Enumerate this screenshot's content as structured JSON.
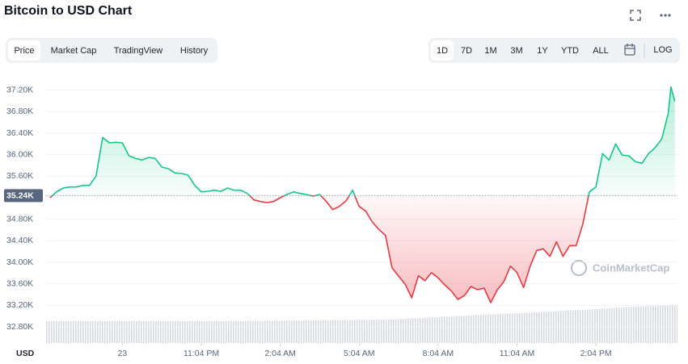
{
  "header": {
    "title": "Bitcoin to USD Chart"
  },
  "tabs": [
    "Price",
    "Market Cap",
    "TradingView",
    "History"
  ],
  "ranges": [
    "1D",
    "7D",
    "1M",
    "3M",
    "1Y",
    "YTD",
    "ALL"
  ],
  "scale_toggle": "LOG",
  "watermark": "CoinMarketCap",
  "chart_data": {
    "type": "line",
    "currency_label": "USD",
    "up_color": "#16c784",
    "down_color": "#ea3943",
    "baseline": {
      "value": 35240,
      "label": "35.24K"
    },
    "x": [
      -2.75,
      -2.5,
      -2.25,
      -2.0,
      -1.75,
      -1.5,
      -1.25,
      -1.0,
      -0.75,
      -0.5,
      -0.25,
      0,
      0.25,
      0.5,
      0.75,
      1.0,
      1.25,
      1.5,
      1.75,
      2.0,
      2.25,
      2.5,
      2.75,
      3.0,
      3.25,
      3.5,
      3.75,
      4.0,
      4.25,
      4.5,
      4.75,
      5.0,
      5.25,
      5.5,
      5.75,
      6.0,
      6.25,
      6.5,
      6.75,
      7.0,
      7.25,
      7.5,
      7.75,
      8.0,
      8.25,
      8.5,
      8.75,
      9.0,
      9.25,
      9.5,
      9.75,
      10.0,
      10.25,
      10.5,
      10.75,
      11.0,
      11.25,
      11.5,
      11.75,
      12.0,
      12.25,
      12.5,
      12.75,
      13.0,
      13.25,
      13.5,
      13.75,
      14.0,
      14.25,
      14.5,
      14.75,
      15.0,
      15.25,
      15.5,
      15.75,
      16.0,
      16.25,
      16.5,
      16.75,
      17.0,
      17.25,
      17.5,
      17.75,
      18.0,
      18.25,
      18.5,
      18.75,
      19.0,
      19.25,
      19.5,
      19.75,
      20.0,
      20.25,
      20.5,
      20.75,
      20.85,
      21.0
    ],
    "values": [
      35200,
      35310,
      35380,
      35400,
      35400,
      35430,
      35430,
      35600,
      36320,
      36220,
      36230,
      36220,
      35980,
      35930,
      35900,
      35950,
      35930,
      35770,
      35740,
      35660,
      35650,
      35620,
      35430,
      35310,
      35320,
      35340,
      35320,
      35380,
      35340,
      35340,
      35280,
      35160,
      35130,
      35110,
      35130,
      35200,
      35260,
      35310,
      35280,
      35260,
      35230,
      35260,
      35130,
      34980,
      35040,
      35140,
      35340,
      35040,
      34950,
      34750,
      34610,
      34500,
      33900,
      33740,
      33590,
      33340,
      33750,
      33660,
      33810,
      33710,
      33580,
      33470,
      33310,
      33380,
      33550,
      33490,
      33520,
      33250,
      33490,
      33640,
      33930,
      33810,
      33530,
      33930,
      34220,
      34250,
      34110,
      34380,
      34110,
      34310,
      34310,
      34710,
      35310,
      35400,
      36020,
      35900,
      36200,
      35990,
      35980,
      35870,
      35840,
      36020,
      36130,
      36290,
      36770,
      37260,
      36990
    ],
    "xlim": [
      -2.9,
      21.1
    ],
    "xticks": [
      {
        "value": 0,
        "label": "23"
      },
      {
        "value": 3,
        "label": "11:04 PM"
      },
      {
        "value": 6,
        "label": "2:04 AM"
      },
      {
        "value": 9,
        "label": "5:04 AM"
      },
      {
        "value": 12,
        "label": "8:04 AM"
      },
      {
        "value": 15,
        "label": "11:04 AM"
      },
      {
        "value": 18,
        "label": "2:04 PM"
      }
    ],
    "ylim": [
      32500,
      37450
    ],
    "yticks": [
      {
        "value": 32800,
        "label": "32.80K"
      },
      {
        "value": 33200,
        "label": "33.20K"
      },
      {
        "value": 33600,
        "label": "33.60K"
      },
      {
        "value": 34000,
        "label": "34.00K"
      },
      {
        "value": 34400,
        "label": "34.40K"
      },
      {
        "value": 34800,
        "label": "34.80K"
      },
      {
        "value": 35600,
        "label": "35.60K"
      },
      {
        "value": 36000,
        "label": "36.00K"
      },
      {
        "value": 36400,
        "label": "36.40K"
      },
      {
        "value": 36800,
        "label": "36.80K"
      },
      {
        "value": 37200,
        "label": "37.20K"
      }
    ],
    "grid": true
  }
}
